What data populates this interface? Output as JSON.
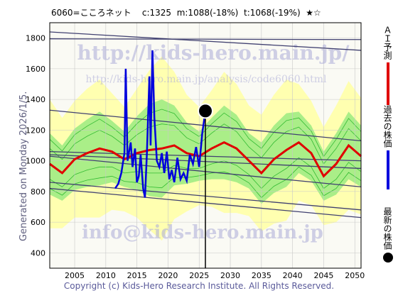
{
  "header": {
    "code_name": "6060=こころネット",
    "current": "c:1325",
    "m_value": "m:1088(-18%)",
    "t_value": "t:1068(-19%)",
    "stars": "★☆"
  },
  "generated": "Generated on Monday 2026/1/5.",
  "copyright": "Copyright (c) Kids-Hero Research Institute. All Rights Reserved.",
  "watermarks": {
    "top": "http://kids-hero.main.jp/",
    "mid": "http://kids-hero.main.jp/analysis/code6060.html",
    "bottom": "info@kids-hero.main.jp"
  },
  "legend": [
    {
      "label": "ＡＩ予測",
      "color": "#e00000"
    },
    {
      "label": "過去の株価",
      "color": "#0000dd"
    },
    {
      "label": "最新の株価",
      "color": "#000000"
    }
  ],
  "chart_data": {
    "type": "line",
    "x_ticks": [
      2005,
      2010,
      2015,
      2020,
      2025,
      2030,
      2035,
      2040,
      2045,
      2050
    ],
    "y_ticks": [
      400,
      600,
      800,
      1000,
      1200,
      1400,
      1600,
      1800
    ],
    "xlim": [
      2001,
      2051
    ],
    "ylim": [
      300,
      1900
    ],
    "grid": true,
    "latest_point": {
      "x": 2026.0,
      "y": 1325
    },
    "ai_forecast": {
      "x": [
        2001,
        2003,
        2005,
        2007,
        2009,
        2011,
        2013,
        2015,
        2017,
        2019,
        2021,
        2023,
        2025,
        2027,
        2029,
        2031,
        2033,
        2035,
        2037,
        2039,
        2041,
        2043,
        2045,
        2047,
        2049,
        2051
      ],
      "y": [
        980,
        920,
        1010,
        1050,
        1080,
        1060,
        1010,
        1050,
        1070,
        1080,
        1100,
        1050,
        1030,
        1080,
        1120,
        1080,
        1000,
        920,
        1010,
        1070,
        1120,
        1050,
        900,
        980,
        1100,
        1030
      ]
    },
    "past_prices": {
      "x": [
        2011.5,
        2012.0,
        2012.5,
        2013.0,
        2013.2,
        2013.5,
        2014.0,
        2014.3,
        2014.7,
        2015.0,
        2015.3,
        2015.6,
        2016.0,
        2016.3,
        2016.6,
        2017.0,
        2017.2,
        2017.5,
        2017.8,
        2018.2,
        2018.6,
        2019.0,
        2019.4,
        2019.8,
        2020.2,
        2020.6,
        2021.0,
        2021.5,
        2022.0,
        2022.5,
        2023.0,
        2023.5,
        2024.0,
        2024.5,
        2025.0,
        2025.5,
        2026.0
      ],
      "y": [
        820,
        850,
        920,
        1050,
        1600,
        1000,
        1120,
        960,
        1080,
        860,
        900,
        1040,
        820,
        760,
        1050,
        1550,
        1100,
        1720,
        1280,
        1000,
        960,
        1050,
        920,
        1060,
        880,
        940,
        860,
        1020,
        880,
        920,
        870,
        1040,
        980,
        1090,
        960,
        1180,
        1325
      ]
    },
    "trend_lines": [
      {
        "x": [
          2001,
          2051
        ],
        "y": [
          1840,
          1720
        ]
      },
      {
        "x": [
          2001,
          2051
        ],
        "y": [
          1795,
          1790
        ]
      },
      {
        "x": [
          2001,
          2051
        ],
        "y": [
          1330,
          1130
        ]
      },
      {
        "x": [
          2001,
          2051
        ],
        "y": [
          1060,
          1000
        ]
      },
      {
        "x": [
          2001,
          2051
        ],
        "y": [
          1040,
          950
        ]
      },
      {
        "x": [
          2001,
          2051
        ],
        "y": [
          1030,
          830
        ]
      },
      {
        "x": [
          2001,
          2051
        ],
        "y": [
          860,
          680
        ]
      },
      {
        "x": [
          2001,
          2051
        ],
        "y": [
          820,
          630
        ]
      }
    ]
  }
}
